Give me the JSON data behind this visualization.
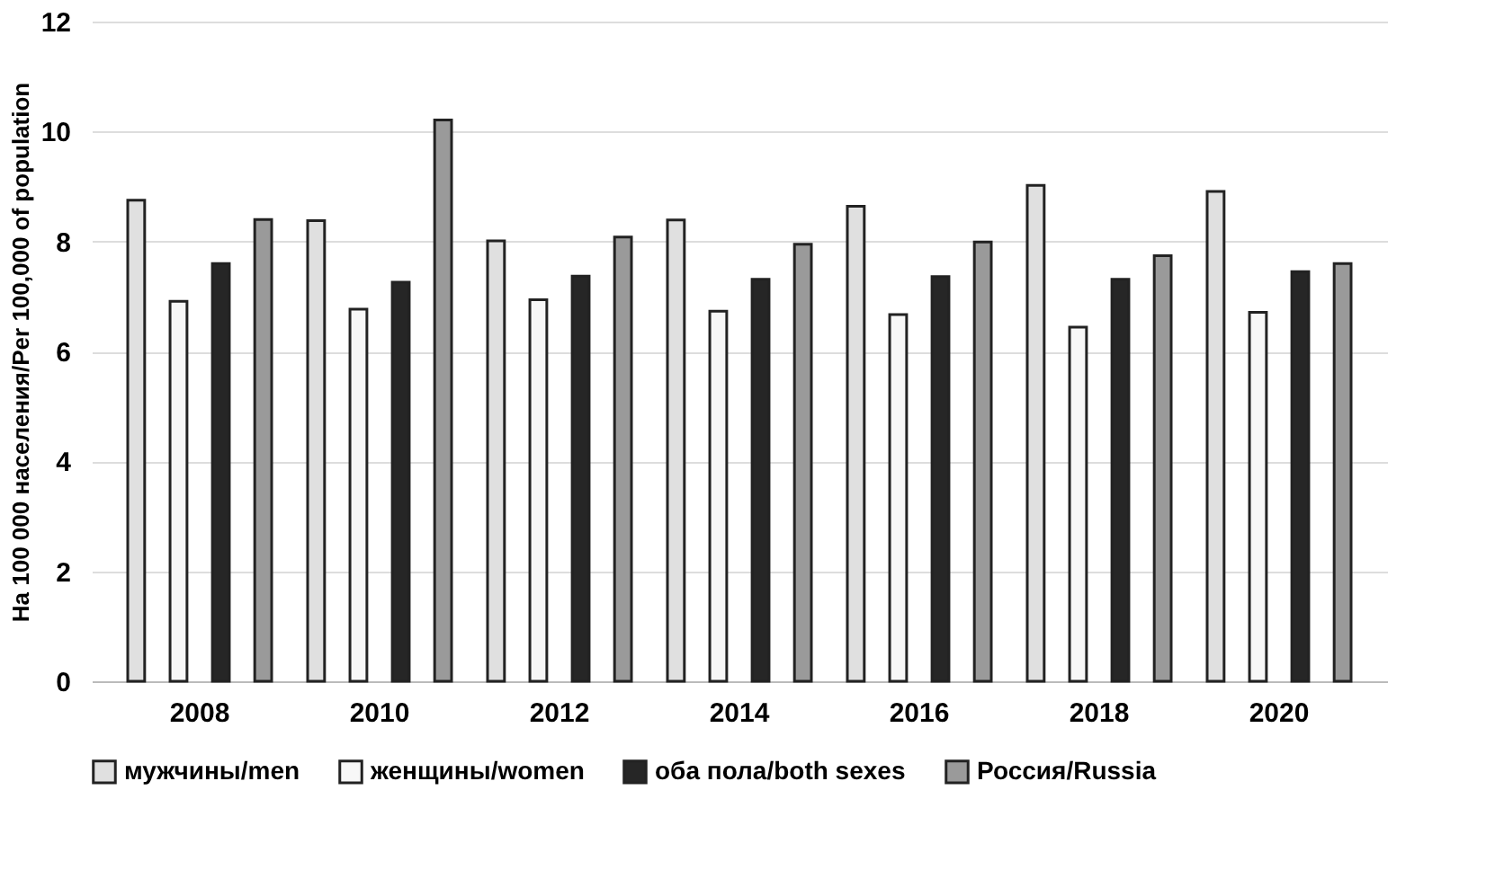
{
  "chart_data": {
    "type": "bar",
    "ylabel": "На 100 000 населения/Per 100,000 of population",
    "categories": [
      "2008",
      "2010",
      "2012",
      "2014",
      "2016",
      "2018",
      "2020"
    ],
    "series": [
      {
        "name": "мужчины/men",
        "color": "#e0e0e0",
        "values": [
          8.75,
          8.38,
          8.01,
          8.39,
          8.64,
          9.02,
          8.91
        ]
      },
      {
        "name": "женщины/women",
        "color": "#f7f7f7",
        "values": [
          6.91,
          6.77,
          6.94,
          6.73,
          6.67,
          6.44,
          6.71
        ]
      },
      {
        "name": "оба пола/both sexes",
        "color": "#262626",
        "values": [
          7.6,
          7.26,
          7.37,
          7.31,
          7.36,
          7.31,
          7.45
        ]
      },
      {
        "name": "Россия/Russia",
        "color": "#9a9a9a",
        "values": [
          8.4,
          10.21,
          8.08,
          7.95,
          7.99,
          7.74,
          7.6
        ]
      }
    ],
    "ylim": [
      0,
      12
    ],
    "yticks": [
      0,
      2,
      4,
      6,
      8,
      10,
      12
    ],
    "grid": "y",
    "legend": "bottom"
  }
}
